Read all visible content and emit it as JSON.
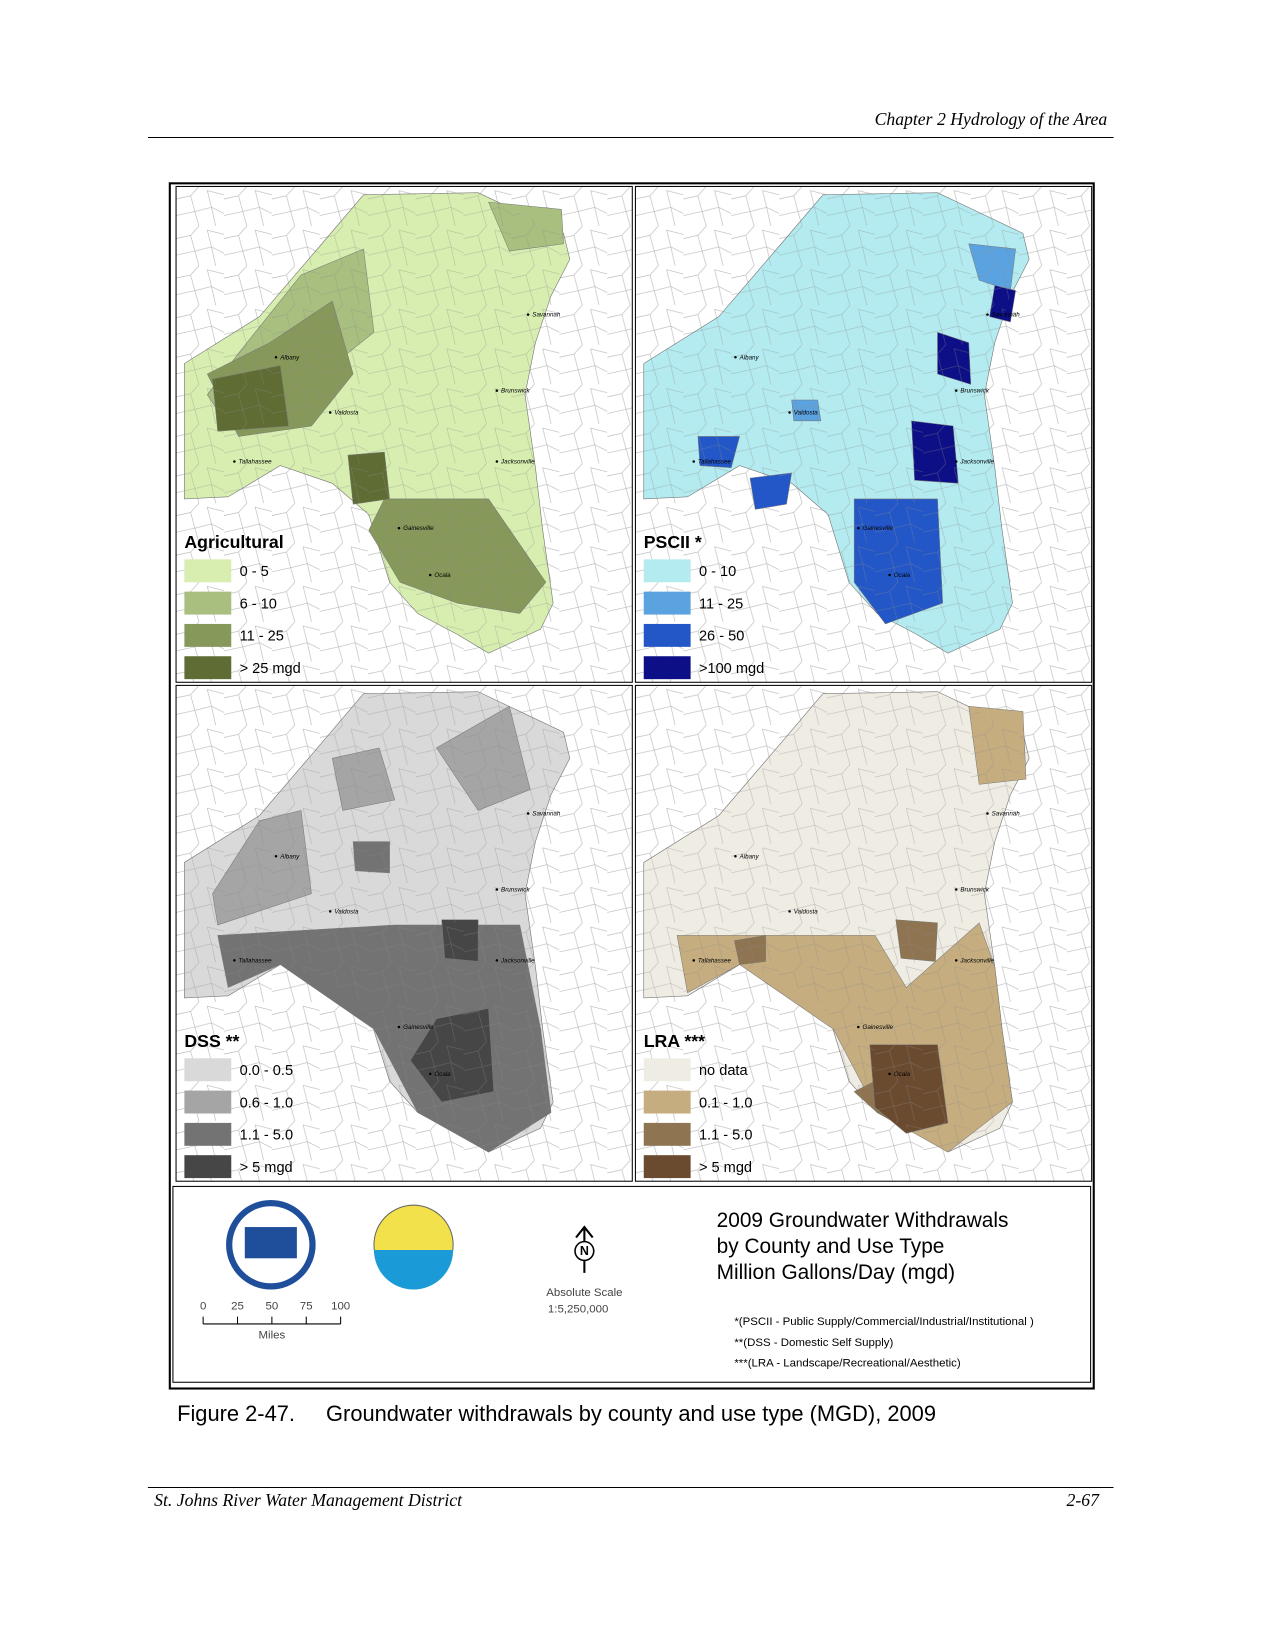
{
  "header": {
    "chapter": "Chapter 2 Hydrology of the Area"
  },
  "figure": {
    "panels": [
      {
        "title": "Agricultural",
        "legend": [
          {
            "label": "0 - 5",
            "color": "#d7eeb0"
          },
          {
            "label": "6 - 10",
            "color": "#a8bf80"
          },
          {
            "label": "11 - 25",
            "color": "#86985a"
          },
          {
            "label": "> 25 mgd",
            "color": "#5f6d34"
          }
        ]
      },
      {
        "title": "PSCII *",
        "legend": [
          {
            "label": "0 - 10",
            "color": "#b3ebf0"
          },
          {
            "label": "11 - 25",
            "color": "#5ba3e0"
          },
          {
            "label": "26 - 50",
            "color": "#2357c7"
          },
          {
            "label": ">100 mgd",
            "color": "#0d0f86"
          }
        ]
      },
      {
        "title": "DSS **",
        "legend": [
          {
            "label": "0.0 - 0.5",
            "color": "#d9d9d9"
          },
          {
            "label": "0.6 - 1.0",
            "color": "#a5a5a5"
          },
          {
            "label": "1.1 - 5.0",
            "color": "#737373"
          },
          {
            "label": "> 5 mgd",
            "color": "#464646"
          }
        ]
      },
      {
        "title": "LRA ***",
        "legend": [
          {
            "label": "no data",
            "color": "#efece3"
          },
          {
            "label": "0.1 - 1.0",
            "color": "#c5ad80"
          },
          {
            "label": "1.1 - 5.0",
            "color": "#8f7451"
          },
          {
            "label": "> 5 mgd",
            "color": "#6b4b30"
          }
        ]
      }
    ],
    "cities": [
      "Savannah",
      "Albany",
      "Brunswick",
      "Valdosta",
      "Jacksonville",
      "Tallahassee",
      "Gainesville",
      "Ocala"
    ],
    "info": {
      "scale_ticks": [
        0,
        25,
        50,
        75,
        100
      ],
      "scale_unit": "Miles",
      "north": "N",
      "scale_title": "Absolute Scale",
      "scale_ratio": "1:5,250,000",
      "title_lines": [
        "2009 Groundwater Withdrawals",
        "by County and Use Type",
        "Million Gallons/Day (mgd)"
      ],
      "notes": [
        "*(PSCII - Public Supply/Commercial/Industrial/Institutional )",
        "**(DSS - Domestic Self Supply)",
        "***(LRA - Landscape/Recreational/Aesthetic)"
      ]
    }
  },
  "caption": {
    "number": "Figure 2-47.",
    "text": "Groundwater withdrawals by county and use type (MGD), 2009"
  },
  "footer": {
    "left": "St. Johns River Water Management District",
    "right": "2-67"
  }
}
